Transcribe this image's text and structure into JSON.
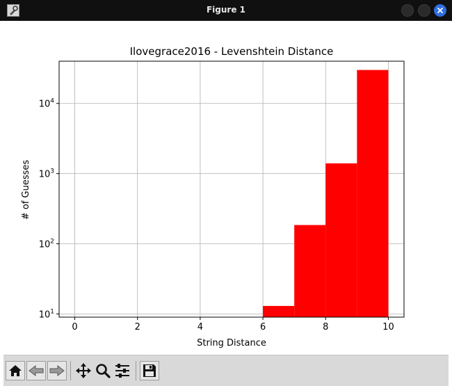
{
  "window": {
    "title": "Figure 1"
  },
  "chart_data": {
    "type": "bar",
    "title": "Ilovegrace2016 - Levenshtein Distance",
    "xlabel": "String Distance",
    "ylabel": "# of Guesses",
    "xlim": [
      -0.5,
      10.5
    ],
    "ylim": [
      9,
      40000
    ],
    "yscale": "log",
    "grid": true,
    "color": "#ff0000",
    "x_ticks": [
      0,
      2,
      4,
      6,
      8,
      10
    ],
    "x_tick_labels": [
      "0",
      "2",
      "4",
      "6",
      "8",
      "10"
    ],
    "y_ticks": [
      {
        "value": 10,
        "base": "10",
        "exp": "1"
      },
      {
        "value": 100,
        "base": "10",
        "exp": "2"
      },
      {
        "value": 1000,
        "base": "10",
        "exp": "3"
      },
      {
        "value": 10000,
        "base": "10",
        "exp": "4"
      }
    ],
    "bins": [
      {
        "x0": 6,
        "x1": 7,
        "value": 13
      },
      {
        "x0": 7,
        "x1": 8,
        "value": 185
      },
      {
        "x0": 8,
        "x1": 9,
        "value": 1400
      },
      {
        "x0": 9,
        "x1": 10,
        "value": 30000
      }
    ]
  },
  "toolbar": {
    "buttons": [
      {
        "name": "home-button",
        "icon": "home-icon"
      },
      {
        "name": "back-button",
        "icon": "arrow-left-icon"
      },
      {
        "name": "forward-button",
        "icon": "arrow-right-icon"
      },
      {
        "name": "pan-button",
        "icon": "move-icon"
      },
      {
        "name": "zoom-button",
        "icon": "magnifier-icon"
      },
      {
        "name": "configure-subplots-button",
        "icon": "sliders-icon"
      },
      {
        "name": "save-button",
        "icon": "floppy-disk-icon"
      }
    ]
  }
}
